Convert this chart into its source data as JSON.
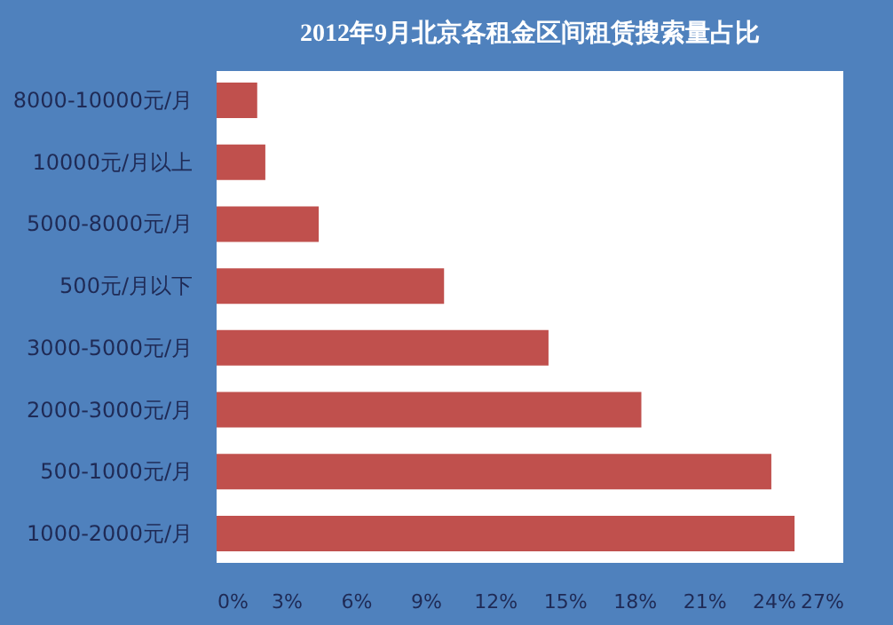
{
  "chart_data": {
    "type": "bar",
    "orientation": "horizontal",
    "title": "2012年9月北京各租金区间租赁搜索量占比",
    "categories": [
      "8000-10000元/月",
      "10000元/月以上",
      "5000-8000元/月",
      "500元/月以下",
      "3000-5000元/月",
      "2000-3000元/月",
      "500-1000元/月",
      "1000-2000元/月"
    ],
    "values": [
      1.75,
      2.1,
      4.4,
      9.8,
      14.3,
      18.3,
      23.9,
      24.9
    ],
    "color": "#c0504d",
    "xlim": [
      0,
      27
    ],
    "xticks": [
      {
        "value": 0,
        "label": "0%"
      },
      {
        "value": 3,
        "label": "3%"
      },
      {
        "value": 6,
        "label": "6%"
      },
      {
        "value": 9,
        "label": "9%"
      },
      {
        "value": 12,
        "label": "12%"
      },
      {
        "value": 15,
        "label": "15%"
      },
      {
        "value": 18,
        "label": "18%"
      },
      {
        "value": 21,
        "label": "21%"
      },
      {
        "value": 24,
        "label": "24%"
      },
      {
        "value": 27,
        "label": "27%"
      }
    ],
    "grid": false
  }
}
